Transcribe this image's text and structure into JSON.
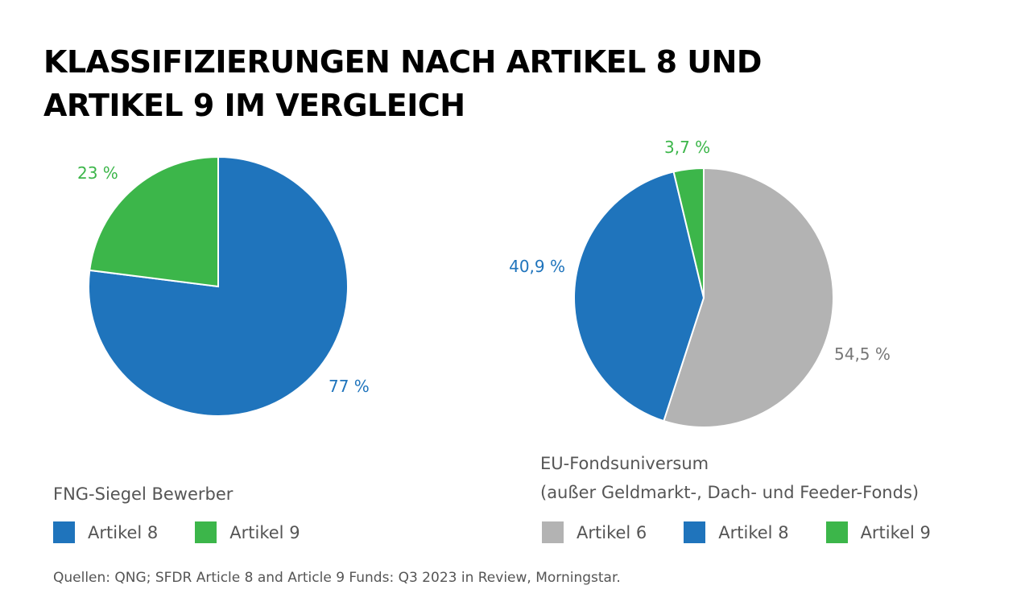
{
  "title_lines": [
    "KLASSIFIZIERUNGEN NACH ARTIKEL 8 UND",
    "ARTIKEL 9 IM VERGLEICH"
  ],
  "colors": {
    "artikel6": "#b3b3b3",
    "artikel8": "#1f74bc",
    "artikel9": "#3cb64a",
    "label_artikel6": "#777777",
    "label_artikel8": "#1f74bc",
    "label_artikel9": "#3cb64a"
  },
  "chart_data": [
    {
      "type": "pie",
      "caption": "FNG-Siegel Bewerber",
      "slices": [
        {
          "name": "Artikel 8",
          "value": 77,
          "label": "77 %",
          "color_key": "artikel8"
        },
        {
          "name": "Artikel 9",
          "value": 23,
          "label": "23 %",
          "color_key": "artikel9"
        }
      ],
      "legend": [
        "Artikel 8",
        "Artikel 9"
      ]
    },
    {
      "type": "pie",
      "caption_lines": [
        "EU-Fondsuniversum",
        "(außer Geldmarkt-, Dach- und Feeder-Fonds)"
      ],
      "slices": [
        {
          "name": "Artikel 6",
          "value": 54.5,
          "label": "54,5 %",
          "color_key": "artikel6"
        },
        {
          "name": "Artikel 8",
          "value": 40.9,
          "label": "40,9 %",
          "color_key": "artikel8"
        },
        {
          "name": "Artikel 9",
          "value": 3.7,
          "label": "3,7 %",
          "color_key": "artikel9"
        }
      ],
      "legend": [
        "Artikel 6",
        "Artikel 8",
        "Artikel 9"
      ]
    }
  ],
  "source": "Quellen: QNG; SFDR Article 8 and Article 9 Funds: Q3 2023 in Review, Morningstar."
}
